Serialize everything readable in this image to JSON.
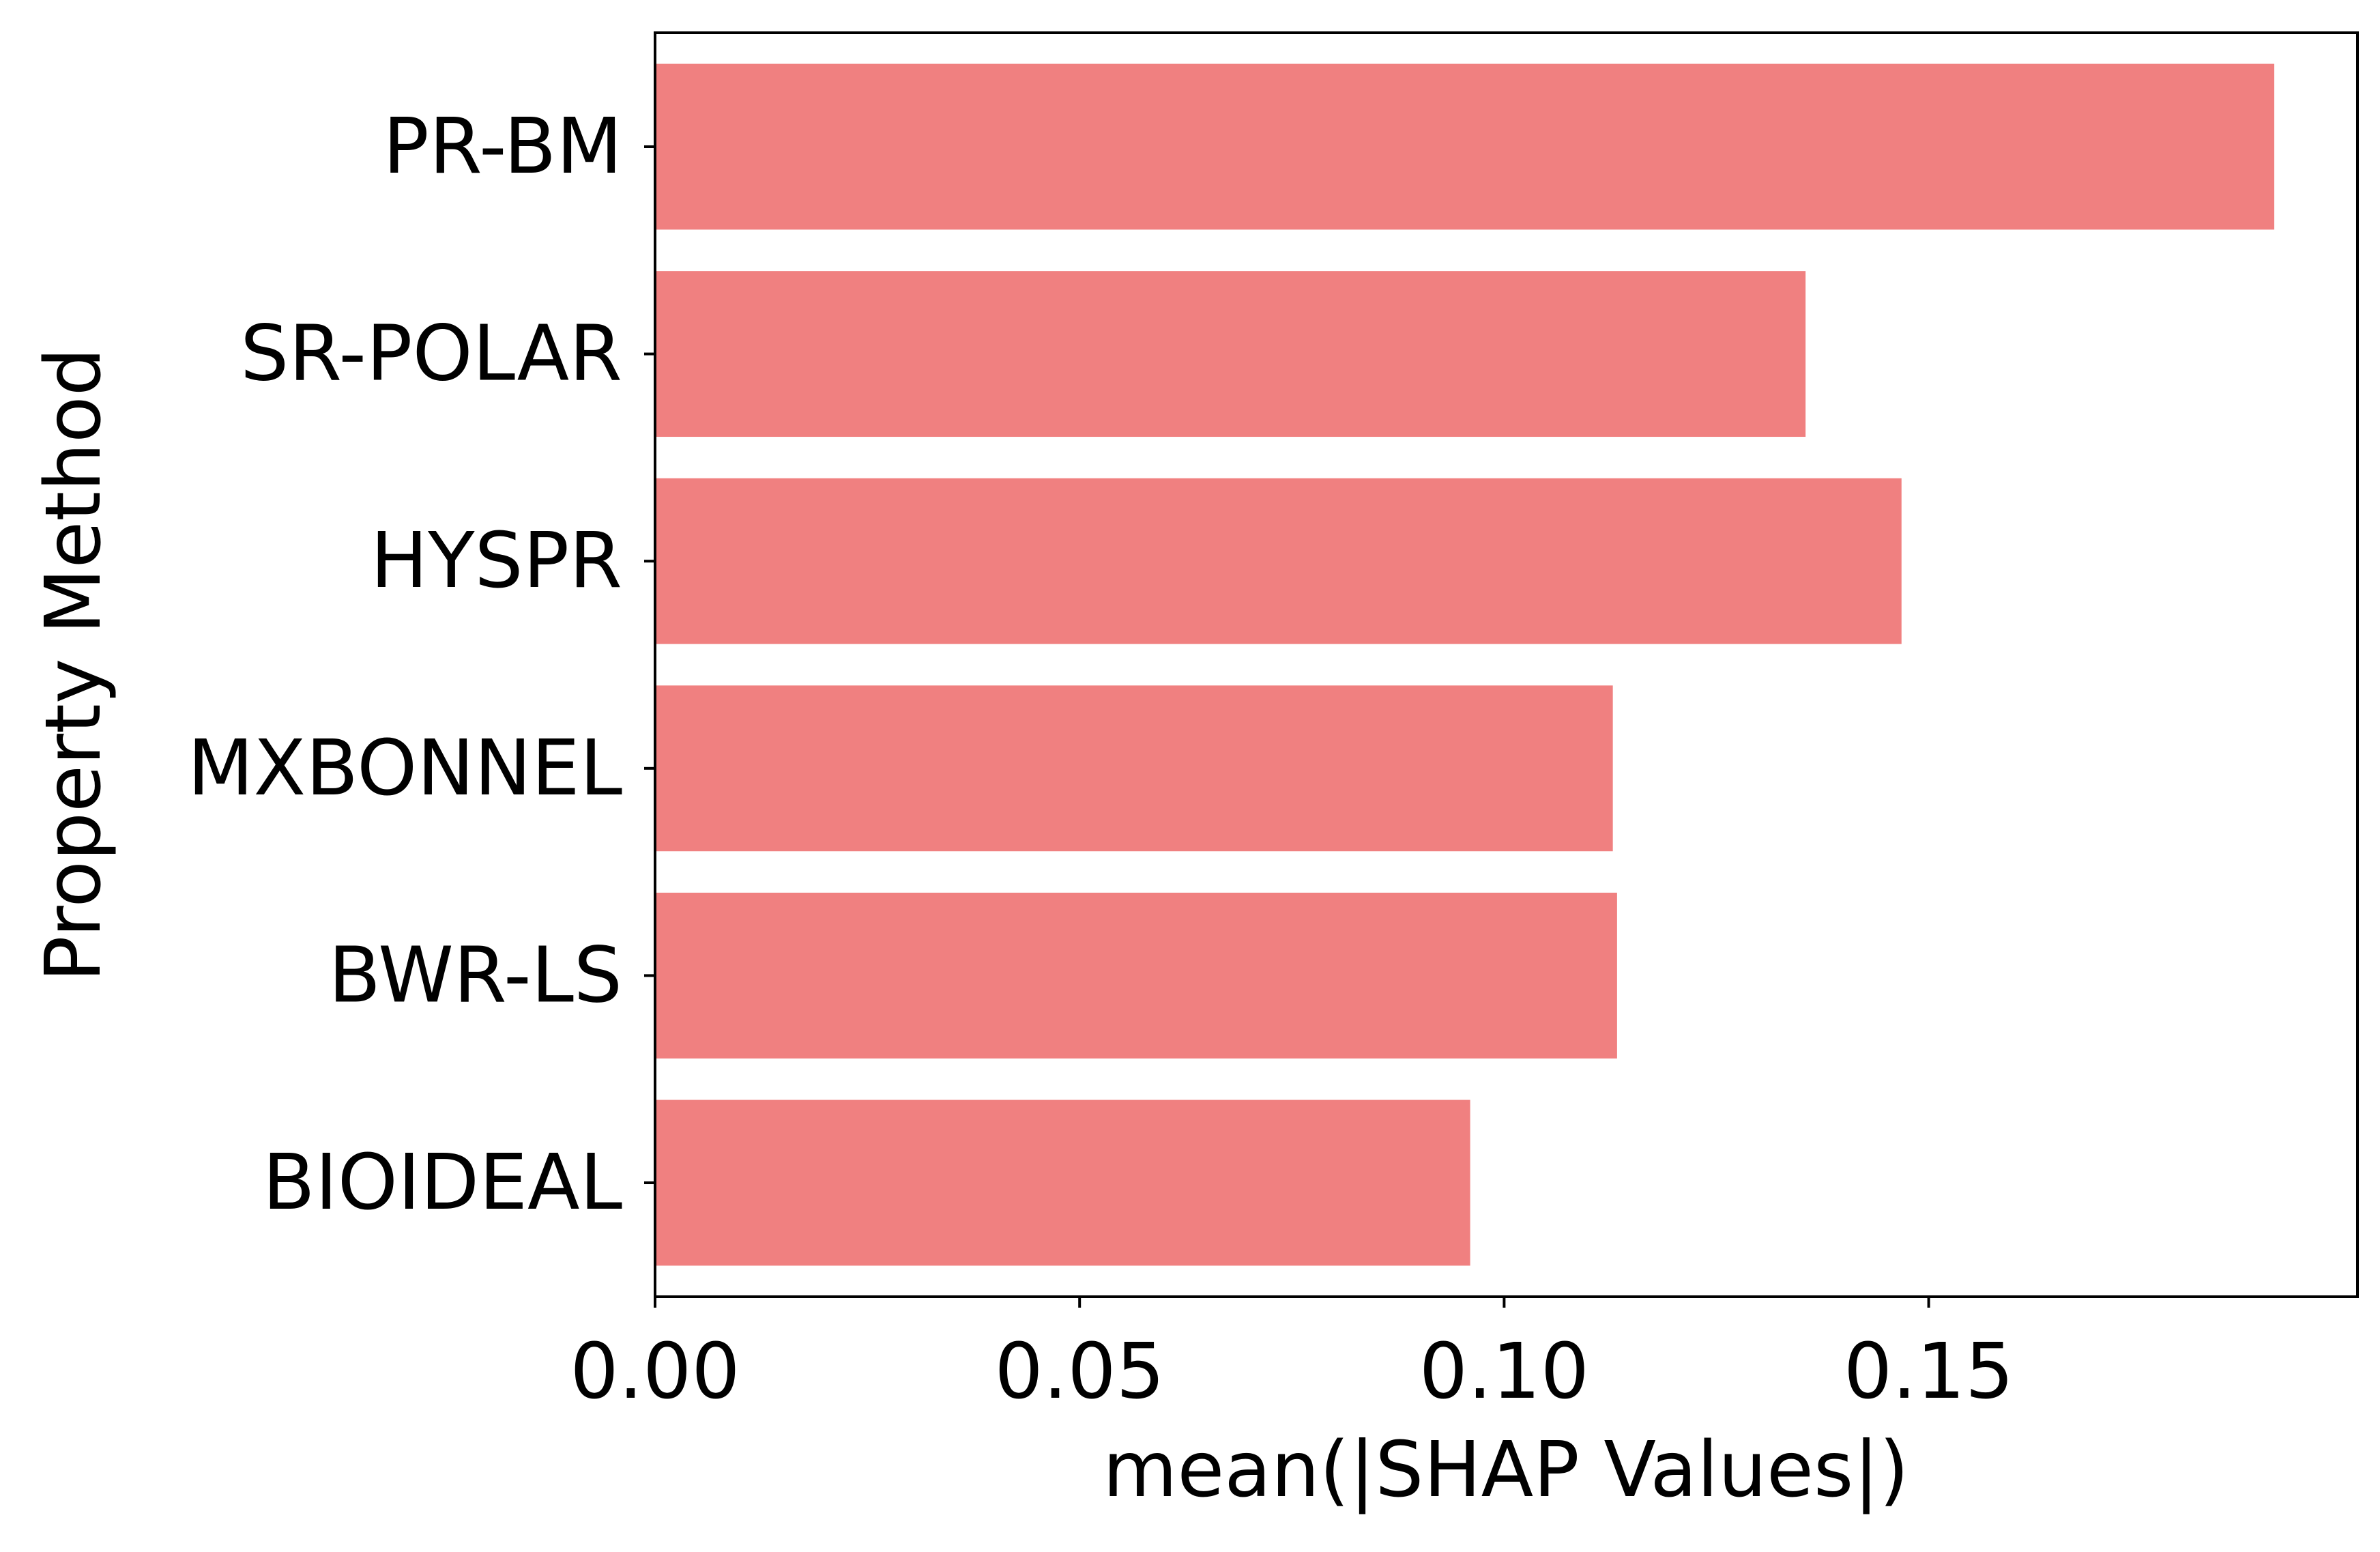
{
  "chart_data": {
    "type": "bar",
    "orientation": "horizontal",
    "categories": [
      "PR-BM",
      "SR-POLAR",
      "HYSPR",
      "MXBONNEL",
      "BWR-LS",
      "BIOIDEAL"
    ],
    "values": [
      0.1907,
      0.1355,
      0.1468,
      0.1128,
      0.1133,
      0.096
    ],
    "xlabel": "mean(|SHAP Values|)",
    "ylabel": "Property Method",
    "title": "",
    "xlim": [
      0,
      0.2005
    ],
    "xticks": [
      0.0,
      0.05,
      0.1,
      0.15
    ],
    "xtick_labels": [
      "0.00",
      "0.05",
      "0.10",
      "0.15"
    ],
    "grid": false,
    "colors": {
      "bar": "#f08080",
      "axis": "#000000"
    }
  }
}
